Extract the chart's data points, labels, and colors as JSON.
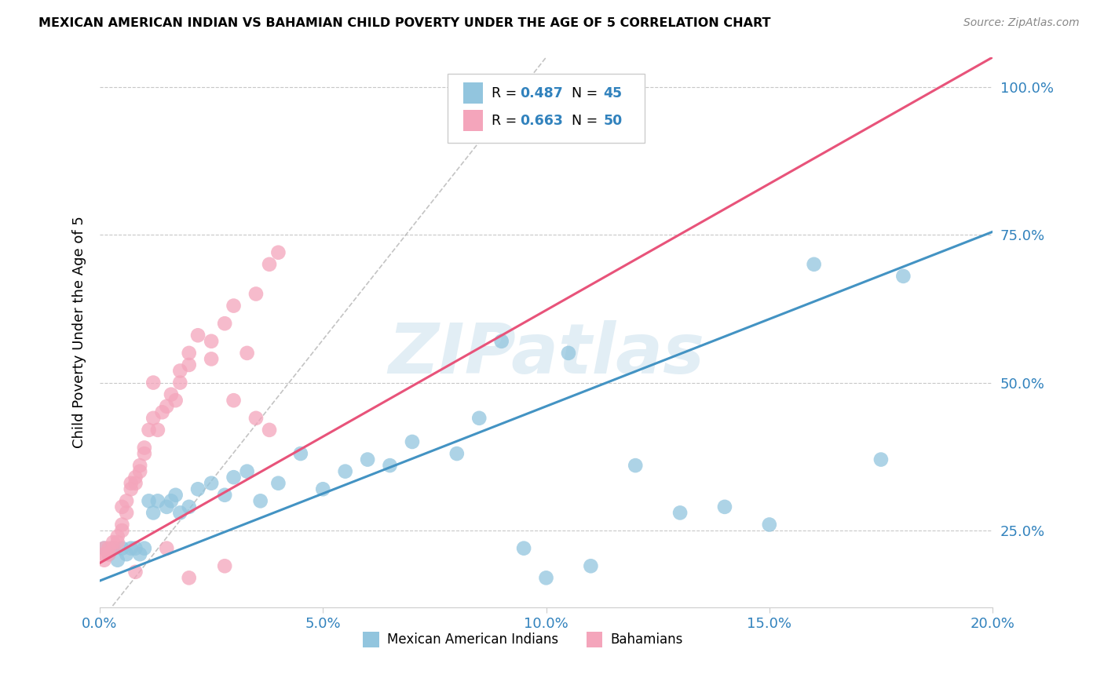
{
  "title": "MEXICAN AMERICAN INDIAN VS BAHAMIAN CHILD POVERTY UNDER THE AGE OF 5 CORRELATION CHART",
  "source": "Source: ZipAtlas.com",
  "ylabel": "Child Poverty Under the Age of 5",
  "xmin": 0.0,
  "xmax": 0.2,
  "ymin": 0.12,
  "ymax": 1.05,
  "blue_R": 0.487,
  "blue_N": 45,
  "pink_R": 0.663,
  "pink_N": 50,
  "blue_color": "#92c5de",
  "pink_color": "#f4a5bb",
  "blue_line_color": "#4393c3",
  "pink_line_color": "#e8537a",
  "watermark_text": "ZIPatlas",
  "legend_labels": [
    "Mexican American Indians",
    "Bahamians"
  ],
  "blue_trendline": [
    0.0,
    0.2,
    0.165,
    0.755
  ],
  "pink_trendline": [
    0.0,
    0.2,
    0.195,
    1.05
  ],
  "ref_line": [
    0.0,
    0.1,
    0.095,
    1.05
  ],
  "blue_scatter_x": [
    0.001,
    0.002,
    0.003,
    0.004,
    0.005,
    0.006,
    0.007,
    0.008,
    0.009,
    0.01,
    0.011,
    0.012,
    0.013,
    0.015,
    0.016,
    0.017,
    0.018,
    0.02,
    0.022,
    0.025,
    0.028,
    0.03,
    0.033,
    0.036,
    0.04,
    0.045,
    0.05,
    0.055,
    0.06,
    0.065,
    0.07,
    0.08,
    0.09,
    0.1,
    0.11,
    0.12,
    0.14,
    0.16,
    0.175,
    0.18,
    0.085,
    0.095,
    0.105,
    0.13,
    0.15
  ],
  "blue_scatter_y": [
    0.22,
    0.21,
    0.22,
    0.2,
    0.22,
    0.21,
    0.22,
    0.22,
    0.21,
    0.22,
    0.3,
    0.28,
    0.3,
    0.29,
    0.3,
    0.31,
    0.28,
    0.29,
    0.32,
    0.33,
    0.31,
    0.34,
    0.35,
    0.3,
    0.33,
    0.38,
    0.32,
    0.35,
    0.37,
    0.36,
    0.4,
    0.38,
    0.57,
    0.17,
    0.19,
    0.36,
    0.29,
    0.7,
    0.37,
    0.68,
    0.44,
    0.22,
    0.55,
    0.28,
    0.26
  ],
  "pink_scatter_x": [
    0.001,
    0.001,
    0.001,
    0.002,
    0.002,
    0.003,
    0.003,
    0.004,
    0.004,
    0.005,
    0.005,
    0.006,
    0.006,
    0.007,
    0.007,
    0.008,
    0.008,
    0.009,
    0.009,
    0.01,
    0.01,
    0.011,
    0.012,
    0.013,
    0.014,
    0.015,
    0.016,
    0.017,
    0.018,
    0.02,
    0.022,
    0.025,
    0.028,
    0.03,
    0.033,
    0.035,
    0.038,
    0.04,
    0.012,
    0.018,
    0.02,
    0.025,
    0.03,
    0.035,
    0.038,
    0.005,
    0.008,
    0.015,
    0.02,
    0.028
  ],
  "pink_scatter_y": [
    0.2,
    0.22,
    0.21,
    0.21,
    0.22,
    0.22,
    0.23,
    0.24,
    0.23,
    0.25,
    0.26,
    0.3,
    0.28,
    0.32,
    0.33,
    0.34,
    0.33,
    0.35,
    0.36,
    0.38,
    0.39,
    0.42,
    0.44,
    0.42,
    0.45,
    0.46,
    0.48,
    0.47,
    0.5,
    0.55,
    0.58,
    0.57,
    0.6,
    0.63,
    0.55,
    0.65,
    0.7,
    0.72,
    0.5,
    0.52,
    0.53,
    0.54,
    0.47,
    0.44,
    0.42,
    0.29,
    0.18,
    0.22,
    0.17,
    0.19
  ]
}
